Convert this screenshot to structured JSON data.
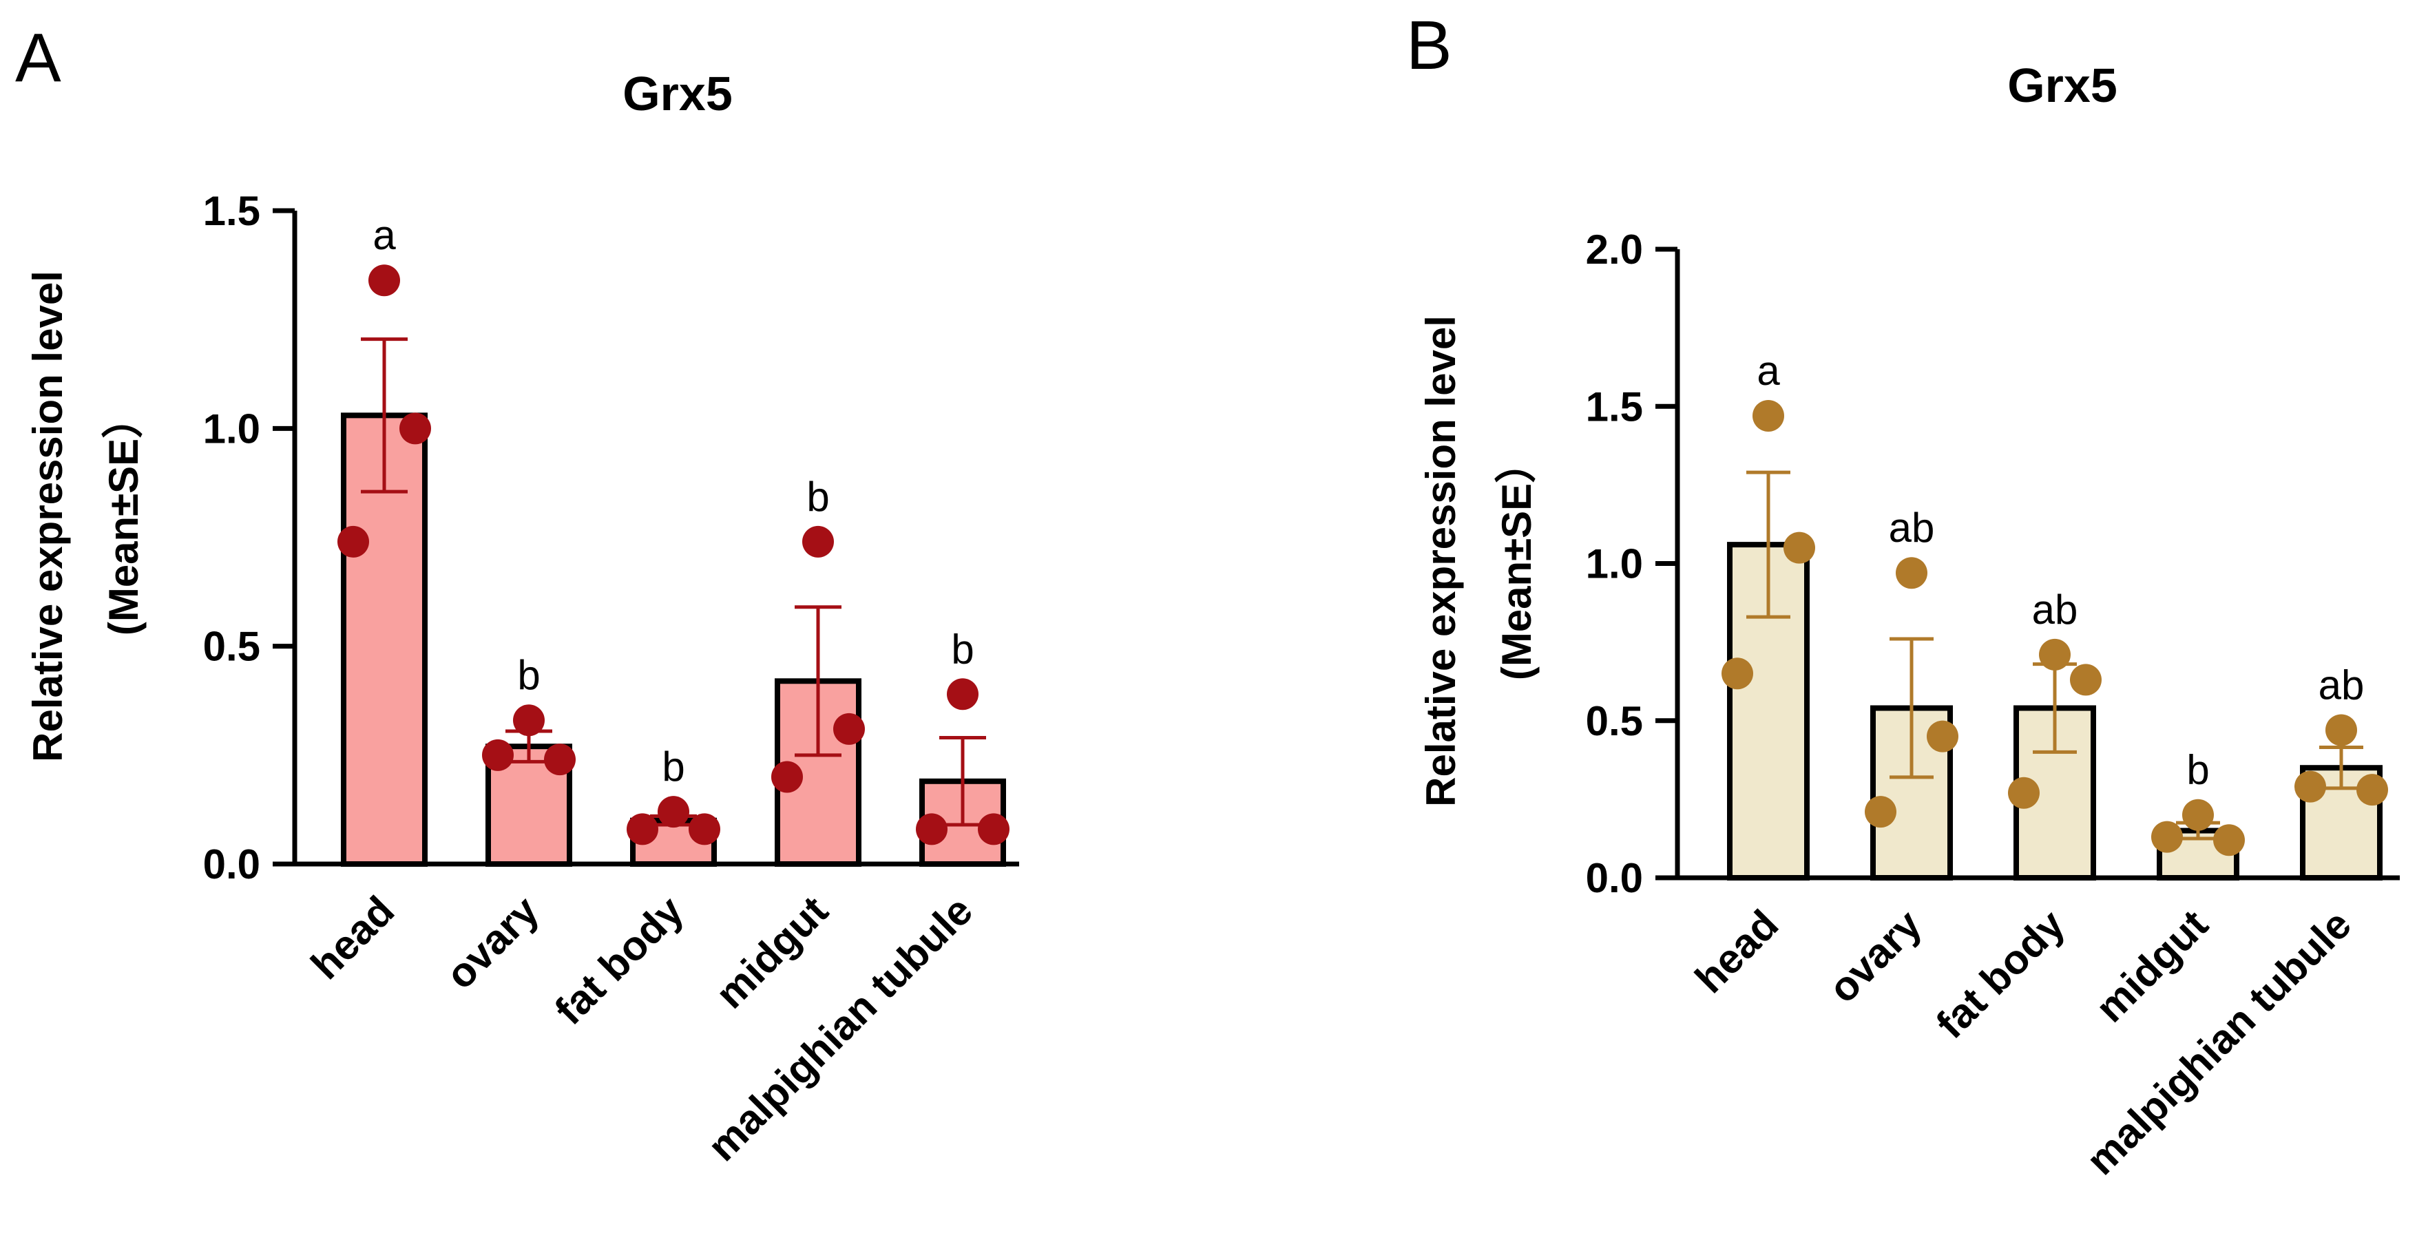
{
  "chart_data": [
    {
      "panel_label": "A",
      "type": "bar",
      "title": "Grx5",
      "ylabel": "Relative expression level",
      "ylabel_sub": "(Mean±SE）",
      "xlabel": "",
      "ylim": [
        0,
        1.5
      ],
      "yticks": [
        0.0,
        0.5,
        1.0,
        1.5
      ],
      "ytick_labels": [
        "0.0",
        "0.5",
        "1.0",
        "1.5"
      ],
      "categories": [
        "head",
        "ovary",
        "fat body",
        "midgut",
        "malpighian tubule"
      ],
      "values": [
        1.03,
        0.27,
        0.1,
        0.42,
        0.19
      ],
      "errors": [
        0.175,
        0.035,
        0.01,
        0.17,
        0.1
      ],
      "points": [
        [
          1.34,
          1.0,
          0.74
        ],
        [
          0.33,
          0.24,
          0.25
        ],
        [
          0.12,
          0.08,
          0.08
        ],
        [
          0.74,
          0.31,
          0.2
        ],
        [
          0.39,
          0.08,
          0.08
        ]
      ],
      "significance": [
        "a",
        "b",
        "b",
        "b",
        "b"
      ],
      "colors": {
        "bar_fill": "#f9a19f",
        "bar_stroke": "#000000",
        "point": "#a50f15",
        "error": "#a50f15"
      },
      "grid": false,
      "legend": "none"
    },
    {
      "panel_label": "B",
      "type": "bar",
      "title": "Grx5",
      "ylabel": "Relative expression level",
      "ylabel_sub": "(Mean±SE）",
      "xlabel": "",
      "ylim": [
        0,
        2.0
      ],
      "yticks": [
        0.0,
        0.5,
        1.0,
        1.5,
        2.0
      ],
      "ytick_labels": [
        "0.0",
        "0.5",
        "1.0",
        "1.5",
        "2.0"
      ],
      "categories": [
        "head",
        "ovary",
        "fat body",
        "midgut",
        "malpighian tubule"
      ],
      "values": [
        1.06,
        0.54,
        0.54,
        0.15,
        0.35
      ],
      "errors": [
        0.23,
        0.22,
        0.14,
        0.025,
        0.065
      ],
      "points": [
        [
          1.47,
          1.05,
          0.65
        ],
        [
          0.97,
          0.45,
          0.21
        ],
        [
          0.71,
          0.63,
          0.27
        ],
        [
          0.2,
          0.12,
          0.13
        ],
        [
          0.47,
          0.28,
          0.29
        ]
      ],
      "significance": [
        "a",
        "ab",
        "ab",
        "b",
        "ab"
      ],
      "colors": {
        "bar_fill": "#f0e8cc",
        "bar_stroke": "#000000",
        "point": "#b07a2a",
        "error": "#b07a2a"
      },
      "grid": false,
      "legend": "none"
    }
  ]
}
